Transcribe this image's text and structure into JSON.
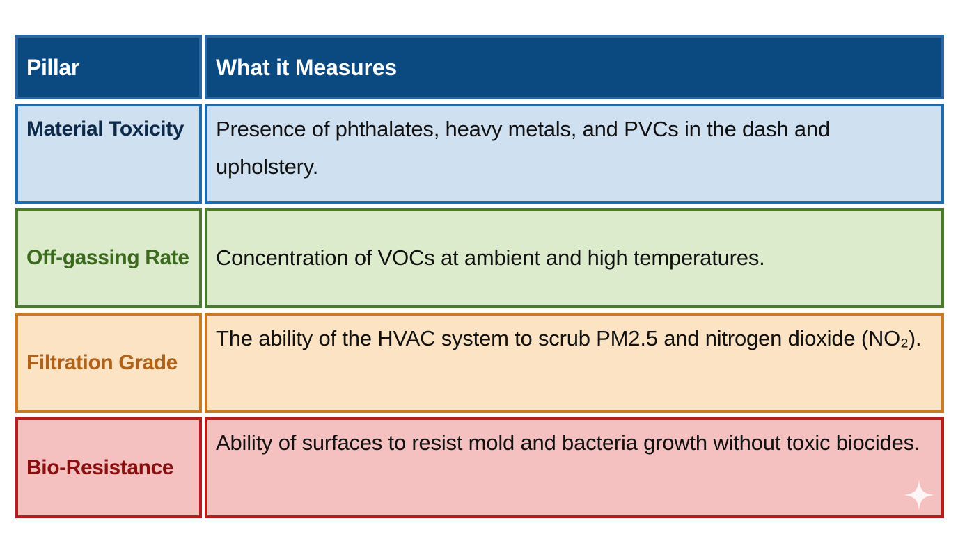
{
  "table": {
    "header": [
      "Pillar",
      "What it Measures"
    ],
    "rows": [
      [
        "Material Toxicity",
        "Presence of phthalates, heavy metals, and PVCs in the dash and upholstery."
      ],
      [
        "Off-gassing Rate",
        "Concentration of VOCs at ambient and high temperatures."
      ],
      [
        "Filtration Grade",
        "The ability of the HVAC system to scrub PM2.5 and nitrogen dioxide (NO₂)."
      ],
      [
        "Bio-Resistance",
        "Ability of surfaces to resist mold and bacteria growth without toxic biocides."
      ]
    ]
  }
}
